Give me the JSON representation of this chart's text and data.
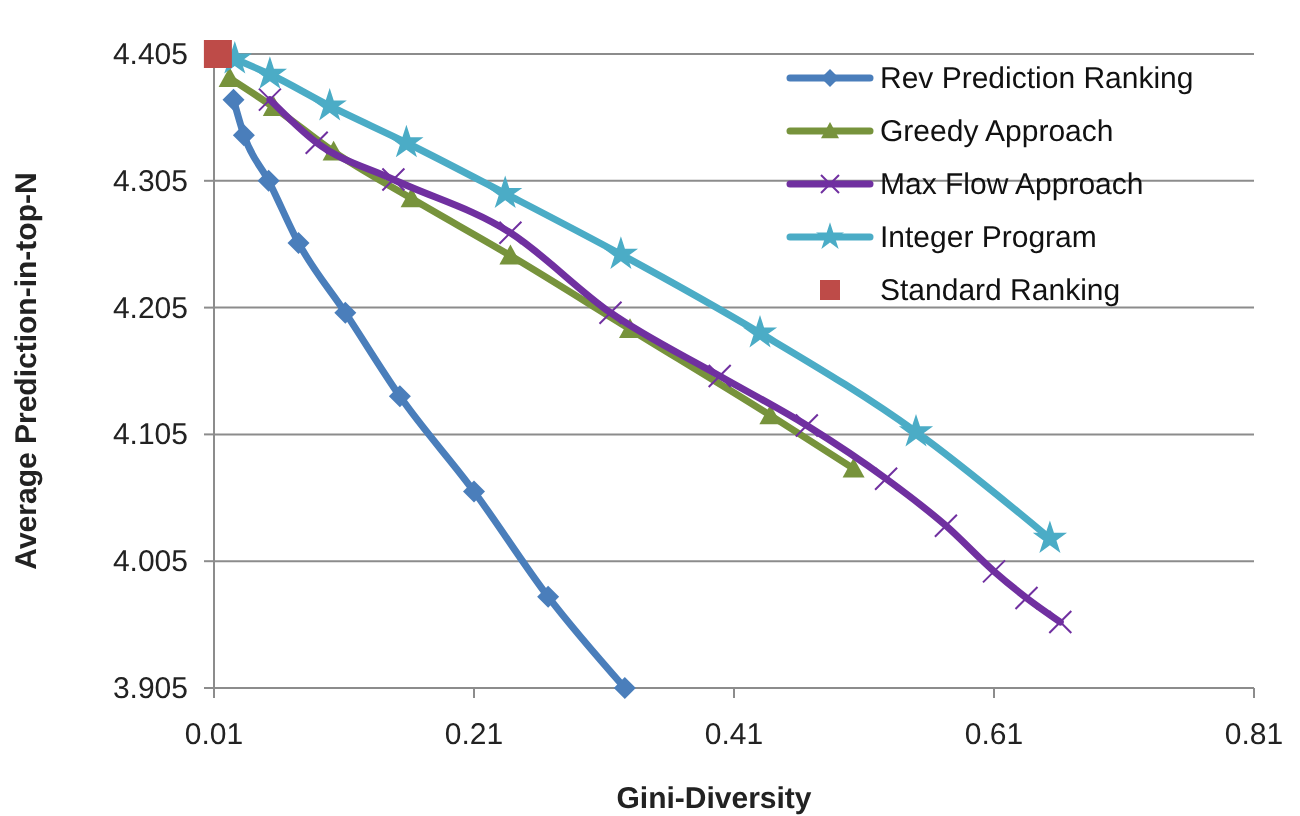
{
  "chart_data": {
    "type": "line",
    "xlabel": "Gini-Diversity",
    "ylabel": "Average Prediction-in-top-N",
    "xlim": [
      0.01,
      0.81
    ],
    "xticks": [
      0.01,
      0.21,
      0.41,
      0.61,
      0.81
    ],
    "ylim": [
      3.905,
      4.405
    ],
    "yticks": [
      3.905,
      4.005,
      4.105,
      4.205,
      4.305,
      4.405
    ],
    "grid": "y",
    "legend": "top right",
    "line_style": "solid",
    "series": [
      {
        "name": "Rev Prediction Ranking",
        "color": "#4a7ebb",
        "marker": "diamond",
        "x": [
          0.025,
          0.033,
          0.052,
          0.075,
          0.111,
          0.153,
          0.21,
          0.267,
          0.326
        ],
        "values": [
          4.369,
          4.341,
          4.305,
          4.256,
          4.201,
          4.135,
          4.06,
          3.977,
          3.905
        ]
      },
      {
        "name": "Greedy Approach",
        "color": "#77933c",
        "marker": "triangle",
        "x": [
          0.022,
          0.056,
          0.102,
          0.162,
          0.238,
          0.33,
          0.438,
          0.502
        ],
        "values": [
          4.386,
          4.363,
          4.328,
          4.291,
          4.246,
          4.188,
          4.12,
          4.078
        ]
      },
      {
        "name": "Max Flow Approach",
        "color": "#7030a0",
        "marker": "cross",
        "x": [
          0.053,
          0.089,
          0.148,
          0.238,
          0.315,
          0.399,
          0.466,
          0.527,
          0.573,
          0.61,
          0.635,
          0.661
        ],
        "values": [
          4.369,
          4.335,
          4.306,
          4.264,
          4.201,
          4.151,
          4.112,
          4.07,
          4.033,
          3.997,
          3.976,
          3.957
        ]
      },
      {
        "name": "Integer Program",
        "color": "#4bacc6",
        "marker": "star",
        "x": [
          0.026,
          0.053,
          0.099,
          0.158,
          0.234,
          0.323,
          0.43,
          0.55,
          0.653
        ],
        "values": [
          4.401,
          4.389,
          4.364,
          4.335,
          4.295,
          4.247,
          4.185,
          4.107,
          4.023
        ]
      },
      {
        "name": "Standard Ranking",
        "type": "scatter",
        "color": "#be4b48",
        "marker": "square",
        "x": [
          0.013
        ],
        "values": [
          4.405
        ]
      }
    ]
  }
}
